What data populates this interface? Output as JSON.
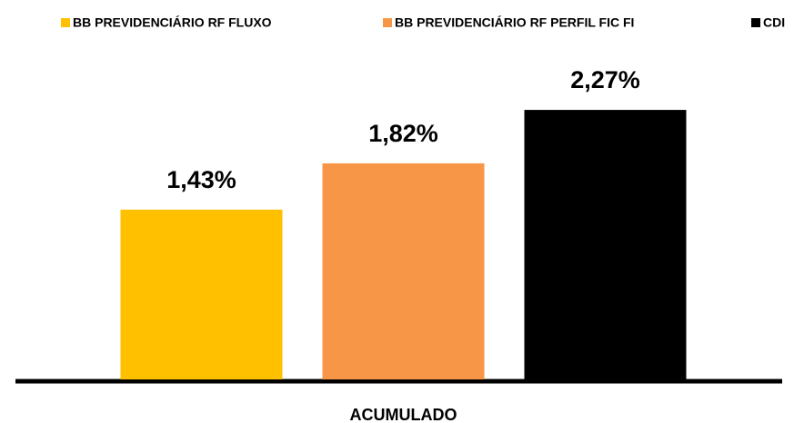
{
  "chart_data": {
    "type": "bar",
    "categories": [
      "ACUMULADO"
    ],
    "series": [
      {
        "name": "BB PREVIDENCIÁRIO RF FLUXO",
        "color": "#ffc000",
        "values": [
          1.43
        ],
        "value_labels": [
          "1,43%"
        ]
      },
      {
        "name": "BB PREVIDENCIÁRIO RF PERFIL FIC FI",
        "color": "#f79646",
        "values": [
          1.82
        ],
        "value_labels": [
          "1,82%"
        ]
      },
      {
        "name": "CDI",
        "color": "#000000",
        "values": [
          2.27
        ],
        "value_labels": [
          "2,27%"
        ]
      }
    ],
    "legend": "top"
  }
}
